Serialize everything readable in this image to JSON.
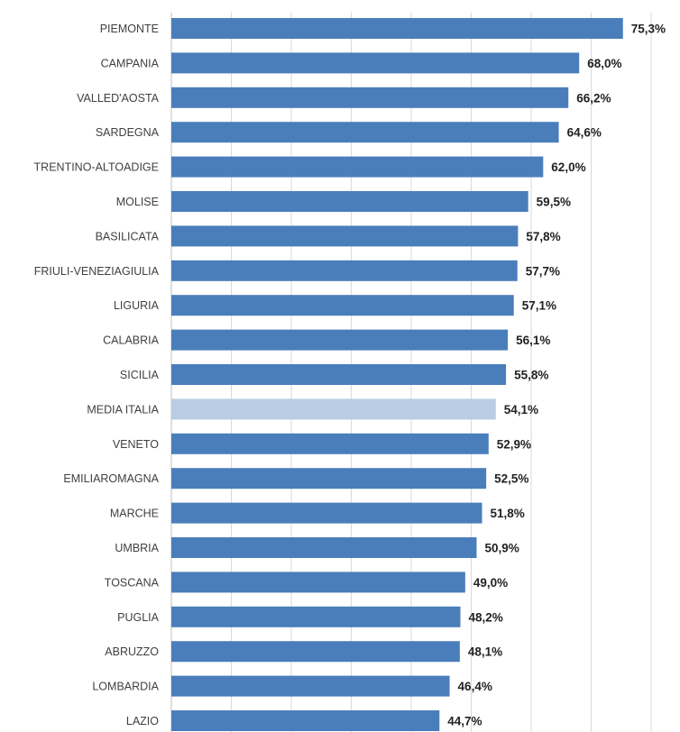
{
  "chart_data": {
    "type": "bar",
    "orientation": "horizontal",
    "title": "",
    "xlabel": "",
    "ylabel": "",
    "xlim": [
      0,
      80
    ],
    "grid": true,
    "legend": "none",
    "value_format": "percent-comma",
    "colors": {
      "bar": "#4a7ebb",
      "highlight": "#b9cde5",
      "grid": "#d9d9d9"
    },
    "highlight_category": "MEDIA ITALIA",
    "categories": [
      "PIEMONTE",
      "CAMPANIA",
      "VALLED'AOSTA",
      "SARDEGNA",
      "TRENTINO-ALTOADIGE",
      "MOLISE",
      "BASILICATA",
      "FRIULI-VENEZIAGIULIA",
      "LIGURIA",
      "CALABRIA",
      "SICILIA",
      "MEDIA ITALIA",
      "VENETO",
      "EMILIAROMAGNA",
      "MARCHE",
      "UMBRIA",
      "TOSCANA",
      "PUGLIA",
      "ABRUZZO",
      "LOMBARDIA",
      "LAZIO"
    ],
    "values": [
      75.3,
      68.0,
      66.2,
      64.6,
      62.0,
      59.5,
      57.8,
      57.7,
      57.1,
      56.1,
      55.8,
      54.1,
      52.9,
      52.5,
      51.8,
      50.9,
      49.0,
      48.2,
      48.1,
      46.4,
      44.7
    ],
    "value_labels": [
      "75,3%",
      "68,0%",
      "66,2%",
      "64,6%",
      "62,0%",
      "59,5%",
      "57,8%",
      "57,7%",
      "57,1%",
      "56,1%",
      "55,8%",
      "54,1%",
      "52,9%",
      "52,5%",
      "51,8%",
      "50,9%",
      "49,0%",
      "48,2%",
      "48,1%",
      "46,4%",
      "44,7%"
    ]
  }
}
